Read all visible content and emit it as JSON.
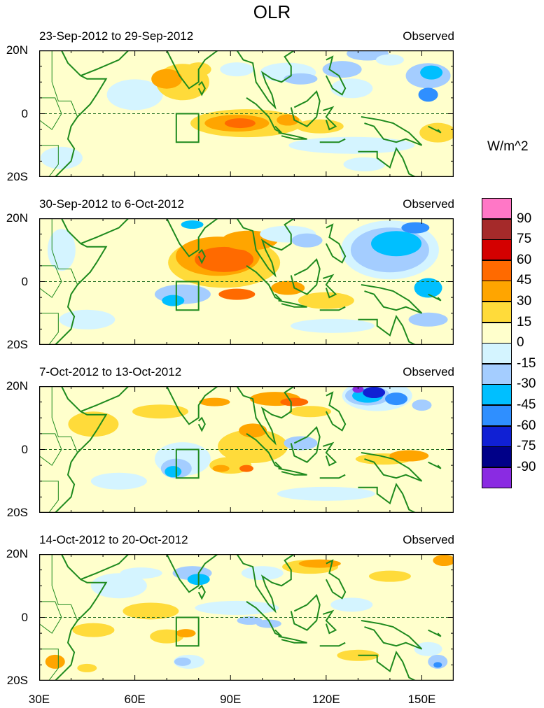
{
  "title": "OLR",
  "panels": [
    {
      "title": "23-Sep-2012 to 29-Sep-2012",
      "tag": "Observed"
    },
    {
      "title": "30-Sep-2012 to 6-Oct-2012",
      "tag": "Observed"
    },
    {
      "title": "7-Oct-2012 to 13-Oct-2012",
      "tag": "Observed"
    },
    {
      "title": "14-Oct-2012 to 20-Oct-2012",
      "tag": "Observed"
    }
  ],
  "y_labels": [
    "20N",
    "0",
    "20S"
  ],
  "x_labels": [
    "30E",
    "60E",
    "90E",
    "120E",
    "150E"
  ],
  "colorbar": {
    "units": "W/m^2",
    "labels": [
      "90",
      "75",
      "60",
      "45",
      "30",
      "15",
      "0",
      "-15",
      "-30",
      "-45",
      "-60",
      "-75",
      "-90"
    ],
    "colors": [
      "#ff77c6",
      "#a52a2a",
      "#d40000",
      "#ff6a00",
      "#ffa500",
      "#ffdb3a",
      "#ffffcc",
      "#d4f4ff",
      "#a4cdff",
      "#00bfff",
      "#2f8fff",
      "#1020d4",
      "#000088",
      "#8a2be2"
    ]
  },
  "colors": {
    "coast": "#1e8a1e",
    "box": "#1e8a1e"
  }
}
